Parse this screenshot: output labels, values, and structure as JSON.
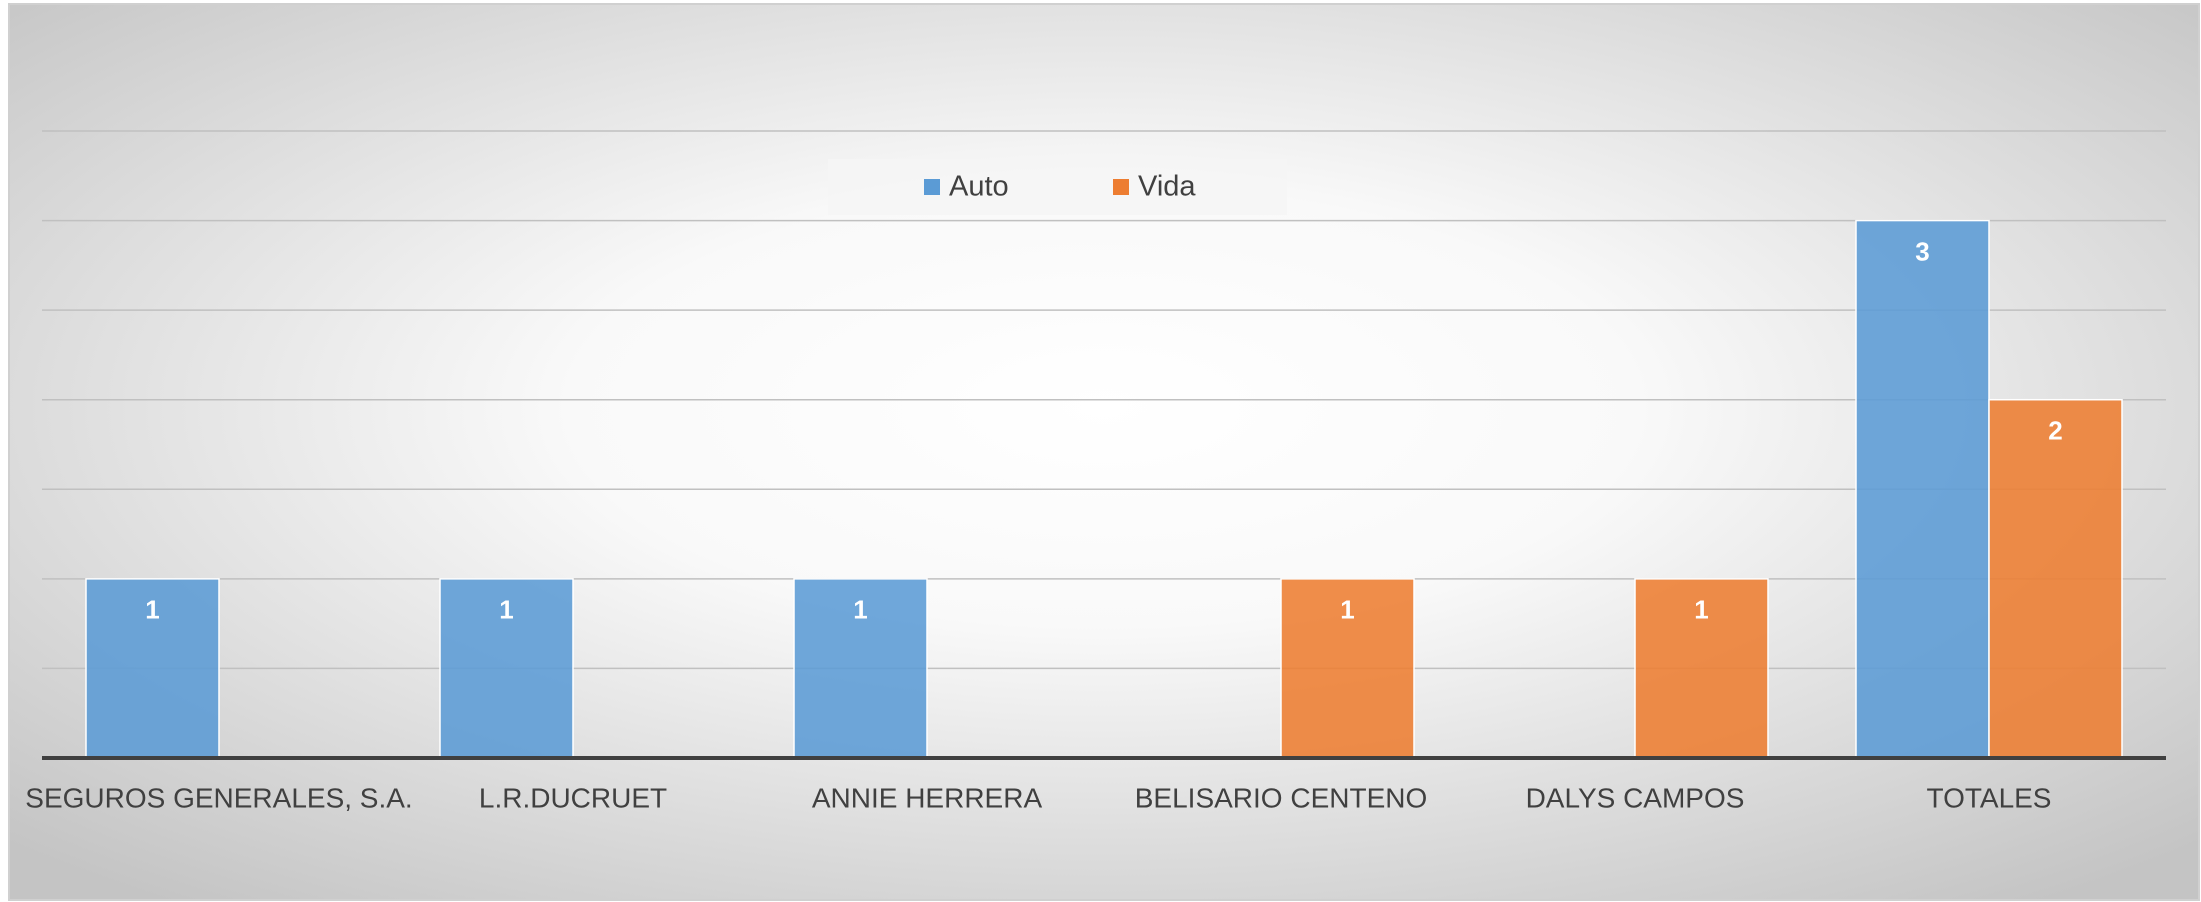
{
  "chart_data": {
    "type": "bar",
    "categories": [
      "SEGUROS GENERALES, S.A.",
      "L.R.DUCRUET",
      "ANNIE HERRERA",
      "BELISARIO CENTENO",
      "DALYS CAMPOS",
      "TOTALES"
    ],
    "series": [
      {
        "name": "Auto",
        "color": "#5b9bd5",
        "values": [
          1,
          1,
          1,
          null,
          null,
          3
        ]
      },
      {
        "name": "Vida",
        "color": "#ed7d31",
        "values": [
          null,
          null,
          null,
          1,
          1,
          2
        ]
      }
    ],
    "ylim": [
      0,
      3.5
    ],
    "yticks": [
      0,
      0.5,
      1,
      1.5,
      2,
      2.5,
      3,
      3.5
    ],
    "grid": true,
    "legend": "top"
  }
}
